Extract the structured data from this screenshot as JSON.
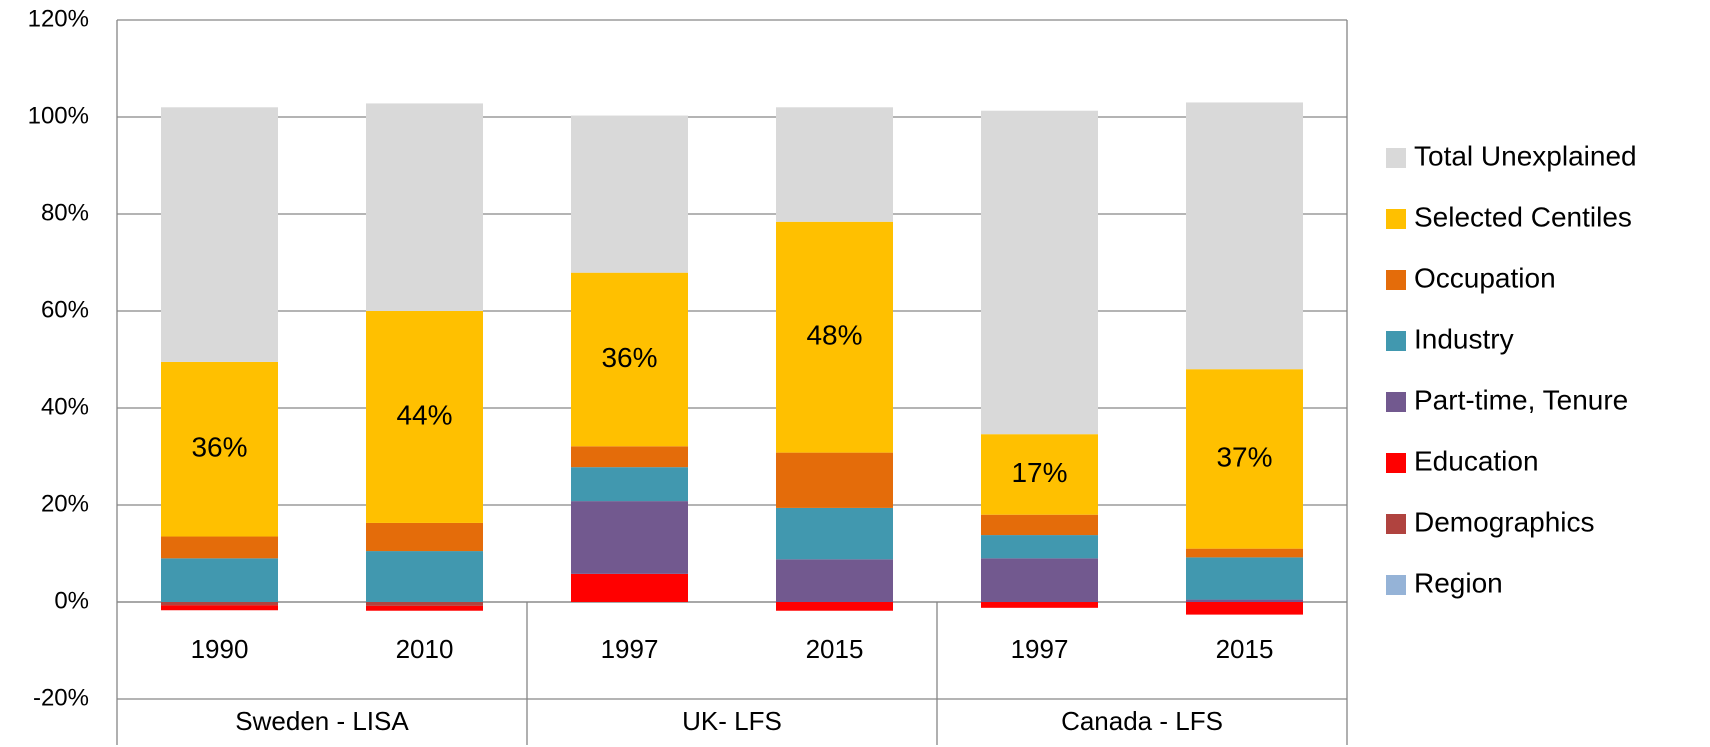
{
  "chart_data": {
    "type": "stacked_bar",
    "categories": [
      "1990",
      "2010",
      "1997",
      "2015",
      "1997",
      "2015"
    ],
    "groups": [
      "Sweden - LISA",
      "UK- LFS",
      "Canada - LFS"
    ],
    "series": [
      {
        "name": "Region",
        "color": "#95b3d7",
        "values": [
          0,
          0,
          0,
          0,
          0,
          0
        ]
      },
      {
        "name": "Demographics",
        "color": "#b0433f",
        "values": [
          -0.7,
          -0.8,
          0,
          0,
          0,
          0
        ]
      },
      {
        "name": "Education",
        "color": "#ff0000",
        "values": [
          -1.0,
          -1.0,
          5.8,
          -1.8,
          -1.2,
          -2.6
        ]
      },
      {
        "name": "Part-time, Tenure",
        "color": "#72598f",
        "values": [
          0,
          0,
          15,
          8.8,
          9,
          0.5
        ]
      },
      {
        "name": "Industry",
        "color": "#4198af",
        "values": [
          9,
          10.5,
          7,
          10.6,
          4.8,
          8.7
        ]
      },
      {
        "name": "Occupation",
        "color": "#e46c0a",
        "values": [
          4.5,
          5.8,
          4.3,
          11.4,
          4.2,
          1.8
        ]
      },
      {
        "name": "Selected Centiles",
        "color": "#ffc000",
        "values": [
          36,
          43.7,
          35.8,
          47.6,
          16.6,
          37
        ],
        "value_labels": [
          "36%",
          "44%",
          "36%",
          "48%",
          "17%",
          "37%"
        ]
      },
      {
        "name": "Total Unexplained",
        "color": "#d9d9d9",
        "values": [
          52.5,
          42.8,
          32.4,
          23.6,
          66.7,
          55
        ]
      }
    ],
    "ylim": [
      -20,
      120
    ],
    "yticks": [
      {
        "value": -20,
        "label": "-20%"
      },
      {
        "value": 0,
        "label": "0%"
      },
      {
        "value": 20,
        "label": "20%"
      },
      {
        "value": 40,
        "label": "40%"
      },
      {
        "value": 60,
        "label": "60%"
      },
      {
        "value": 80,
        "label": "80%"
      },
      {
        "value": 100,
        "label": "100%"
      },
      {
        "value": 120,
        "label": "120%"
      }
    ],
    "grid": true,
    "legend": "right"
  }
}
